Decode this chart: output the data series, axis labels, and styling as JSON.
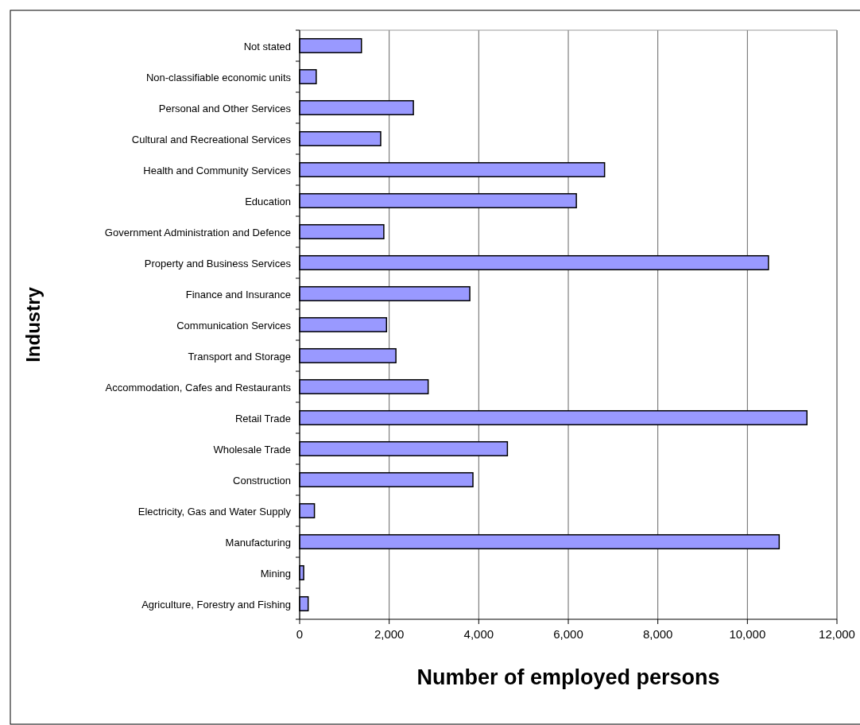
{
  "chart_data": {
    "type": "bar",
    "orientation": "horizontal",
    "xlabel": "Number of employed persons",
    "ylabel": "Industry",
    "categories": [
      "Not stated",
      "Non-classifiable economic units",
      "Personal and Other Services",
      "Cultural and Recreational Services",
      "Health and Community Services",
      "Education",
      "Government Administration and Defence",
      "Property and Business Services",
      "Finance and Insurance",
      "Communication Services",
      "Transport and Storage",
      "Accommodation, Cafes and Restaurants",
      "Retail Trade",
      "Wholesale Trade",
      "Construction",
      "Electricity, Gas and Water Supply",
      "Manufacturing",
      "Mining",
      "Agriculture, Forestry and Fishing"
    ],
    "values": [
      1380,
      370,
      2540,
      1810,
      6810,
      6180,
      1880,
      10470,
      3800,
      1940,
      2150,
      2870,
      11330,
      4640,
      3870,
      330,
      10710,
      90,
      190
    ],
    "color": "#9999ff",
    "xlim": [
      0,
      12000
    ],
    "xticks": [
      {
        "value": 0,
        "label": "0"
      },
      {
        "value": 2000,
        "label": "2,000"
      },
      {
        "value": 4000,
        "label": "4,000"
      },
      {
        "value": 6000,
        "label": "6,000"
      },
      {
        "value": 8000,
        "label": "8,000"
      },
      {
        "value": 10000,
        "label": "10,000"
      },
      {
        "value": 12000,
        "label": "12,000"
      }
    ],
    "grid": "x"
  }
}
